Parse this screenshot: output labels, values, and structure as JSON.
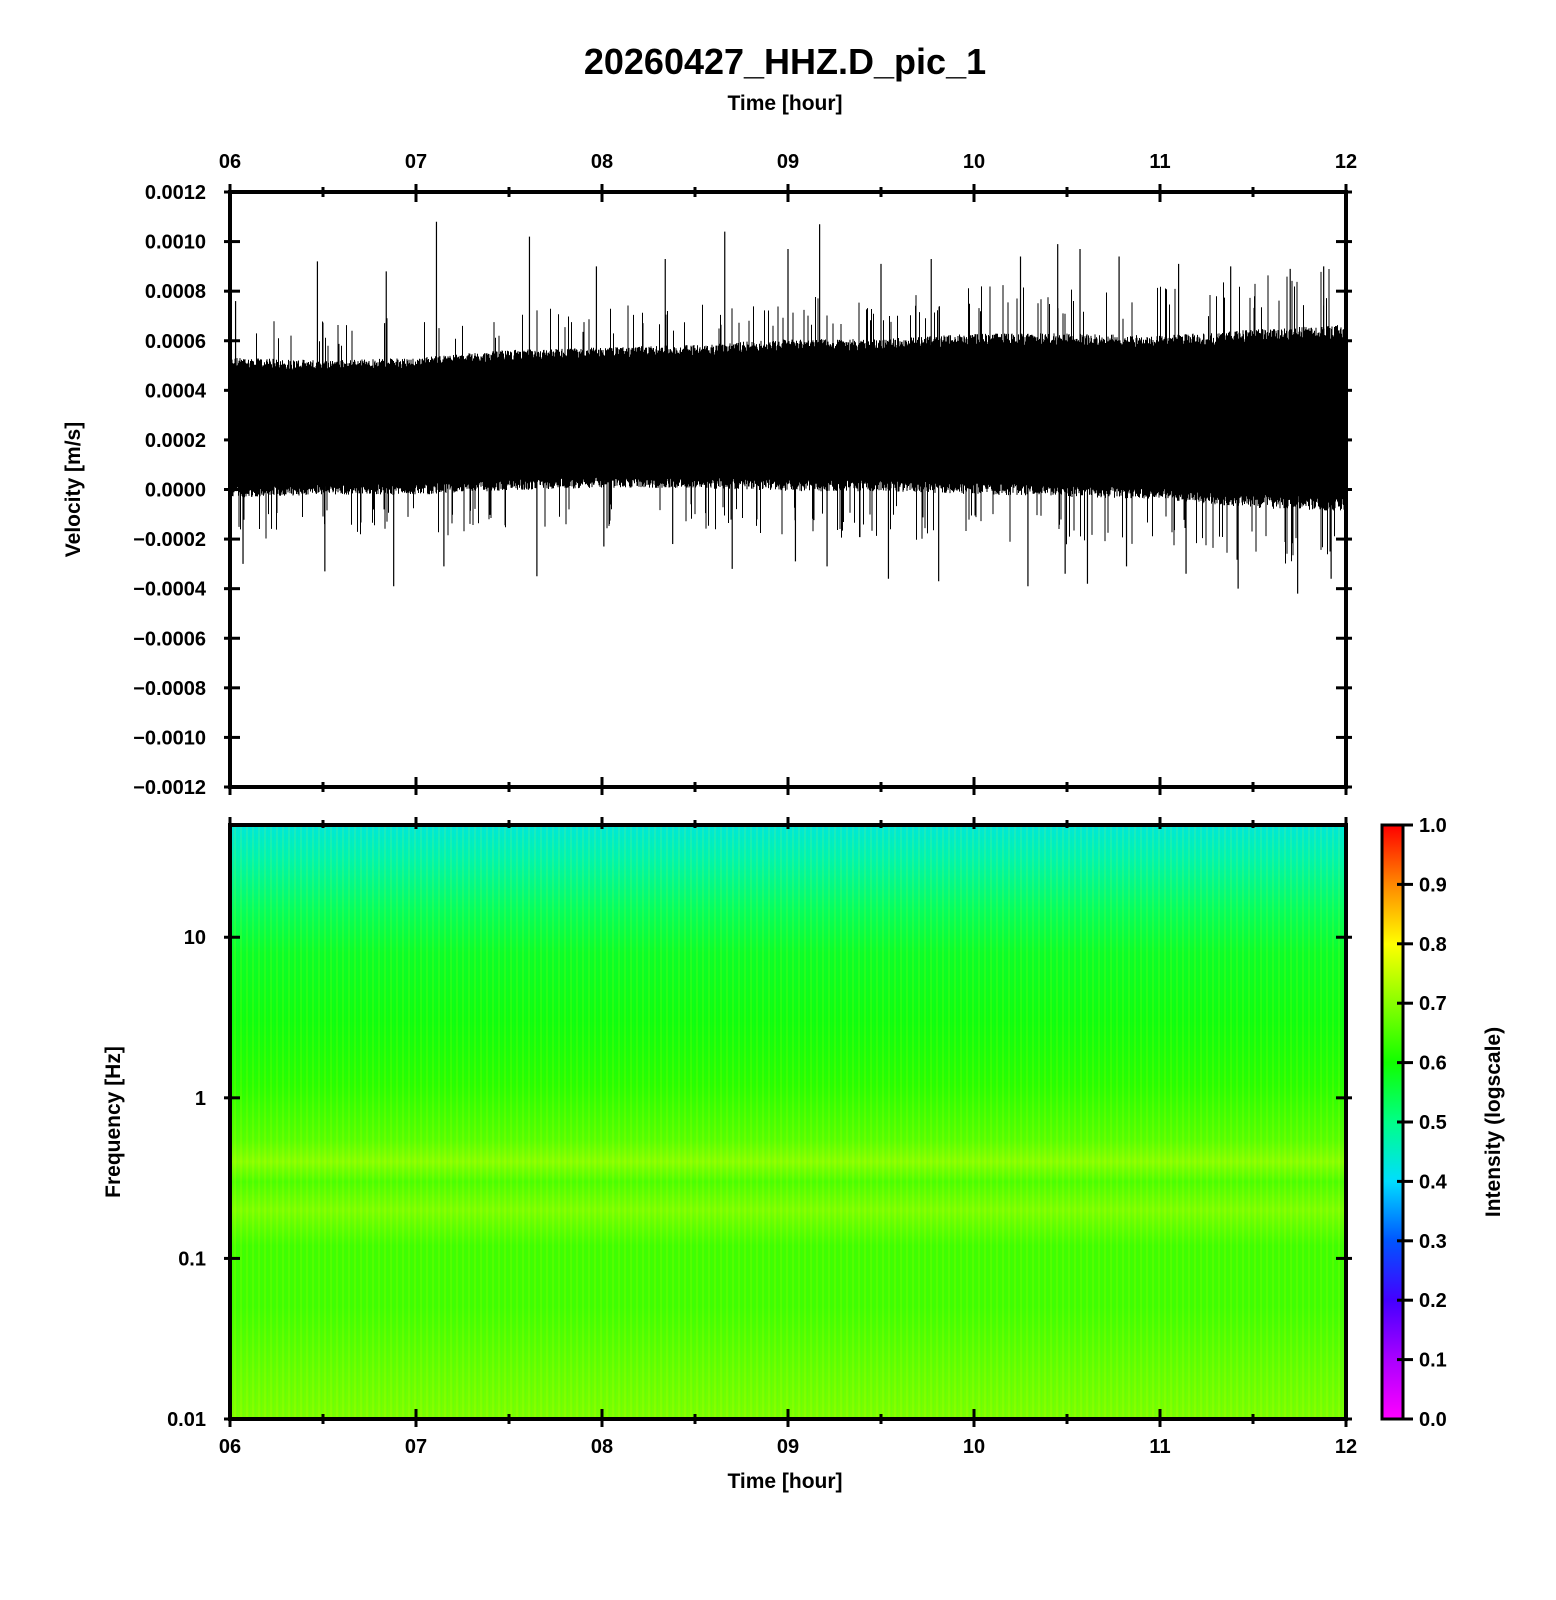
{
  "figure": {
    "title": "20260427_HHZ.D_pic_1",
    "top_xlabel": "Time [hour]",
    "bottom_xlabel": "Time [hour]"
  },
  "chart_data": [
    {
      "type": "line",
      "name": "waveform",
      "xlabel": "Time [hour]",
      "ylabel": "Velocity [m/s]",
      "x_ticks": [
        "06",
        "07",
        "08",
        "09",
        "10",
        "11",
        "12"
      ],
      "xlim": [
        6,
        12
      ],
      "ylim": [
        -0.0012,
        0.0012
      ],
      "y_ticks": [
        "0.0012",
        "0.0010",
        "0.0008",
        "0.0006",
        "0.0004",
        "0.0002",
        "0.0000",
        "−0.0002",
        "−0.0004",
        "−0.0006",
        "−0.0008",
        "−0.0010",
        "−0.0012"
      ],
      "y_tick_values": [
        0.0012,
        0.001,
        0.0008,
        0.0006,
        0.0004,
        0.0002,
        0.0,
        -0.0002,
        -0.0004,
        -0.0006,
        -0.0008,
        -0.001,
        -0.0012
      ],
      "color": "#000000",
      "grid": false,
      "envelope": {
        "time_hours": [
          6.0,
          6.5,
          7.0,
          7.5,
          8.0,
          8.5,
          9.0,
          9.5,
          10.0,
          10.5,
          11.0,
          11.5,
          12.0
        ],
        "upper": [
          0.00049,
          0.00048,
          0.00049,
          0.00052,
          0.00053,
          0.00054,
          0.00056,
          0.00056,
          0.00058,
          0.00058,
          0.00057,
          0.00059,
          0.00061
        ],
        "lower": [
          1e-05,
          2e-05,
          2e-05,
          4e-05,
          5e-05,
          5e-05,
          4e-05,
          4e-05,
          3e-05,
          2e-05,
          1e-05,
          -2e-05,
          -3e-05
        ]
      },
      "peaks": {
        "time_hours": [
          6.03,
          6.47,
          6.84,
          7.11,
          7.61,
          7.97,
          8.34,
          8.66,
          9.0,
          9.17,
          9.5,
          9.77,
          10.25,
          10.45,
          10.57,
          10.78,
          11.1,
          11.38,
          11.7,
          11.88
        ],
        "max": [
          0.00076,
          0.00092,
          0.00088,
          0.00108,
          0.00102,
          0.0009,
          0.00093,
          0.00104,
          0.00097,
          0.00107,
          0.00091,
          0.00093,
          0.00094,
          0.00099,
          0.00097,
          0.00094,
          0.00091,
          0.0009,
          0.00089,
          0.0009
        ],
        "min": [
          -0.0003,
          -0.00033,
          -0.00039,
          -0.00031,
          -0.00035,
          -0.00023,
          -0.00022,
          -0.00032,
          -0.00029,
          -0.00031,
          -0.00036,
          -0.00037,
          -0.00039,
          -0.00034,
          -0.00038,
          -0.00031,
          -0.00034,
          -0.0004,
          -0.00042,
          -0.00036
        ]
      }
    },
    {
      "type": "heatmap",
      "name": "spectrogram",
      "xlabel": "Time [hour]",
      "ylabel": "Frequency [Hz]",
      "x_ticks": [
        "06",
        "07",
        "08",
        "09",
        "10",
        "11",
        "12"
      ],
      "xlim": [
        6,
        12
      ],
      "y_scale": "log",
      "ylim": [
        0.01,
        50
      ],
      "y_ticks": [
        "10",
        "1",
        "0.1",
        "0.01"
      ],
      "y_tick_values": [
        10,
        1,
        0.1,
        0.01
      ],
      "colorbar": {
        "label": "Intensity (logscale)",
        "range": [
          0.0,
          1.0
        ],
        "ticks": [
          "1.0",
          "0.9",
          "0.8",
          "0.7",
          "0.6",
          "0.5",
          "0.4",
          "0.3",
          "0.2",
          "0.1",
          "0.0"
        ],
        "tick_values": [
          1.0,
          0.9,
          0.8,
          0.7,
          0.6,
          0.5,
          0.4,
          0.3,
          0.2,
          0.1,
          0.0
        ],
        "colormap": [
          {
            "value": 0.0,
            "color": "#ff00ff"
          },
          {
            "value": 0.1,
            "color": "#aa00ff"
          },
          {
            "value": 0.2,
            "color": "#4400ff"
          },
          {
            "value": 0.3,
            "color": "#0055ff"
          },
          {
            "value": 0.4,
            "color": "#00ddff"
          },
          {
            "value": 0.5,
            "color": "#00ff88"
          },
          {
            "value": 0.6,
            "color": "#11ff00"
          },
          {
            "value": 0.7,
            "color": "#88ff00"
          },
          {
            "value": 0.8,
            "color": "#ffff00"
          },
          {
            "value": 0.9,
            "color": "#ff8800"
          },
          {
            "value": 1.0,
            "color": "#ff0000"
          }
        ]
      },
      "intensity_profile": {
        "frequency_hz": [
          50,
          30,
          15,
          8,
          3,
          1.2,
          0.55,
          0.4,
          0.3,
          0.2,
          0.12,
          0.05,
          0.02,
          0.01
        ],
        "intensity": [
          0.43,
          0.47,
          0.53,
          0.57,
          0.59,
          0.62,
          0.66,
          0.7,
          0.65,
          0.69,
          0.64,
          0.64,
          0.67,
          0.69
        ]
      }
    }
  ]
}
